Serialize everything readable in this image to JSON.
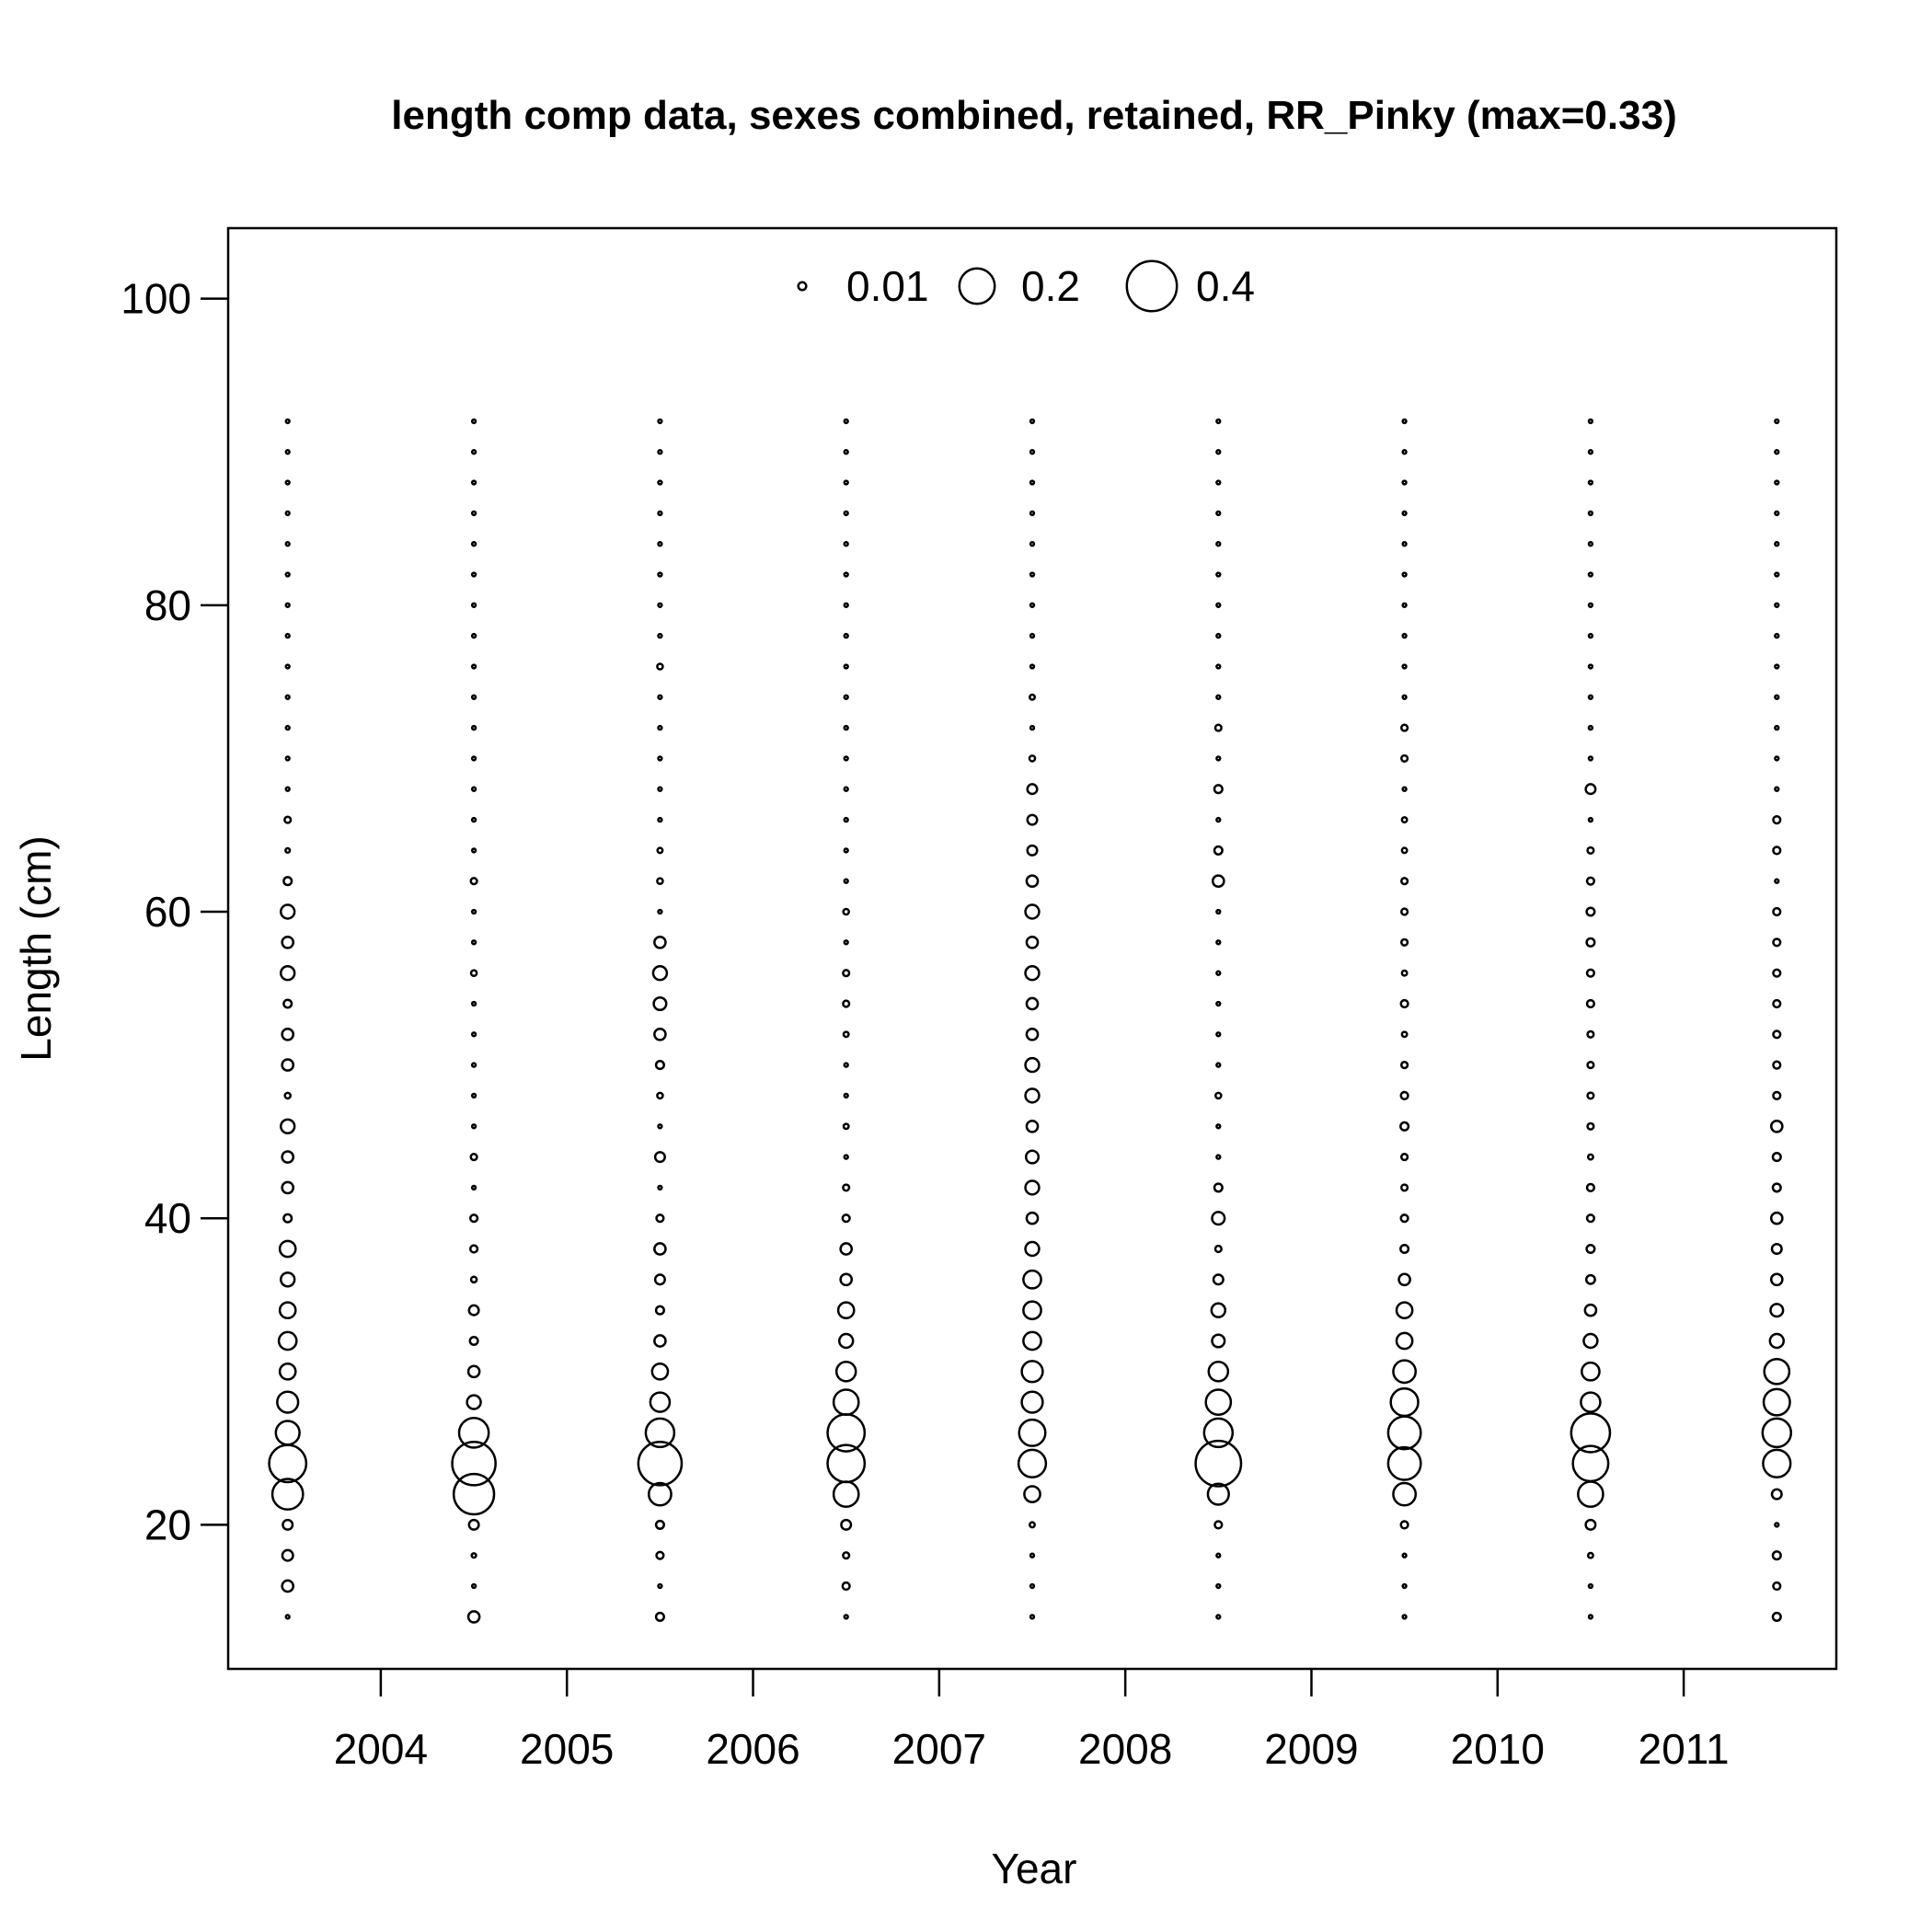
{
  "chart_data": {
    "type": "scatter",
    "subtype": "bubble",
    "title": "length comp data, sexes combined, retained, RR_Pinky (max=0.33)",
    "xlabel": "Year",
    "ylabel": "Length (cm)",
    "xlim": [
      2003.18,
      2011.82
    ],
    "ylim": [
      10.6,
      104.6
    ],
    "x_ticks": [
      2004,
      2005,
      2006,
      2007,
      2008,
      2009,
      2010,
      2011
    ],
    "y_ticks": [
      20,
      40,
      60,
      80,
      100
    ],
    "legend": {
      "placement": "top-center",
      "entries": [
        {
          "label": "0.01",
          "value": 0.01
        },
        {
          "label": "0.2",
          "value": 0.2
        },
        {
          "label": "0.4",
          "value": 0.4
        }
      ]
    },
    "size_scale": "radius proportional to sqrt(proportion)",
    "length_bins": [
      14,
      16,
      18,
      20,
      22,
      24,
      26,
      28,
      30,
      32,
      34,
      36,
      38,
      40,
      42,
      44,
      46,
      48,
      50,
      52,
      54,
      56,
      58,
      60,
      62,
      64,
      66,
      68,
      70,
      72,
      74,
      76,
      78,
      80,
      82,
      84,
      86,
      88,
      90,
      92
    ],
    "series": [
      {
        "x": 2003.5,
        "values": [
          0.002,
          0.02,
          0.018,
          0.015,
          0.15,
          0.22,
          0.09,
          0.07,
          0.04,
          0.05,
          0.04,
          0.03,
          0.04,
          0.01,
          0.02,
          0.02,
          0.03,
          0.005,
          0.02,
          0.02,
          0.01,
          0.03,
          0.02,
          0.03,
          0.01,
          0.003,
          0.006,
          0.002,
          0.002,
          0.002,
          0.002,
          0.002,
          0.002,
          0.002,
          0.002,
          0.002,
          0.002,
          0.002,
          0.002,
          0.002
        ]
      },
      {
        "x": 2004.5,
        "values": [
          0.02,
          0.002,
          0.003,
          0.015,
          0.26,
          0.3,
          0.14,
          0.03,
          0.02,
          0.01,
          0.015,
          0.005,
          0.008,
          0.008,
          0.002,
          0.006,
          0.002,
          0.002,
          0.002,
          0.002,
          0.002,
          0.005,
          0.002,
          0.002,
          0.006,
          0.002,
          0.002,
          0.002,
          0.002,
          0.002,
          0.002,
          0.002,
          0.002,
          0.002,
          0.002,
          0.002,
          0.002,
          0.002,
          0.002,
          0.002
        ]
      },
      {
        "x": 2005.5,
        "values": [
          0.01,
          0.002,
          0.008,
          0.01,
          0.08,
          0.3,
          0.13,
          0.06,
          0.04,
          0.02,
          0.01,
          0.015,
          0.02,
          0.008,
          0.002,
          0.015,
          0.002,
          0.005,
          0.01,
          0.02,
          0.025,
          0.03,
          0.02,
          0.002,
          0.005,
          0.004,
          0.002,
          0.002,
          0.002,
          0.002,
          0.002,
          0.005,
          0.002,
          0.002,
          0.002,
          0.002,
          0.002,
          0.002,
          0.002,
          0.002
        ]
      },
      {
        "x": 2006.5,
        "values": [
          0.002,
          0.008,
          0.006,
          0.015,
          0.1,
          0.22,
          0.22,
          0.1,
          0.06,
          0.03,
          0.04,
          0.02,
          0.02,
          0.008,
          0.006,
          0.002,
          0.004,
          0.002,
          0.002,
          0.004,
          0.006,
          0.006,
          0.002,
          0.005,
          0.002,
          0.002,
          0.002,
          0.002,
          0.002,
          0.002,
          0.002,
          0.002,
          0.002,
          0.002,
          0.002,
          0.002,
          0.002,
          0.002,
          0.002,
          0.002
        ]
      },
      {
        "x": 2007.5,
        "values": [
          0.002,
          0.002,
          0.002,
          0.004,
          0.04,
          0.12,
          0.11,
          0.07,
          0.07,
          0.05,
          0.05,
          0.05,
          0.03,
          0.02,
          0.03,
          0.025,
          0.02,
          0.03,
          0.03,
          0.02,
          0.02,
          0.03,
          0.02,
          0.03,
          0.02,
          0.015,
          0.015,
          0.015,
          0.005,
          0.002,
          0.004,
          0.002,
          0.002,
          0.002,
          0.002,
          0.002,
          0.002,
          0.002,
          0.002,
          0.002
        ]
      },
      {
        "x": 2008.5,
        "values": [
          0.002,
          0.002,
          0.002,
          0.008,
          0.07,
          0.33,
          0.13,
          0.1,
          0.06,
          0.025,
          0.03,
          0.015,
          0.006,
          0.025,
          0.01,
          0.002,
          0.002,
          0.005,
          0.002,
          0.002,
          0.002,
          0.002,
          0.002,
          0.002,
          0.02,
          0.01,
          0.002,
          0.01,
          0.002,
          0.006,
          0.002,
          0.002,
          0.002,
          0.002,
          0.002,
          0.002,
          0.002,
          0.002,
          0.002,
          0.002
        ]
      },
      {
        "x": 2009.5,
        "values": [
          0.002,
          0.002,
          0.002,
          0.008,
          0.08,
          0.17,
          0.17,
          0.12,
          0.08,
          0.04,
          0.04,
          0.02,
          0.01,
          0.008,
          0.006,
          0.006,
          0.01,
          0.008,
          0.006,
          0.004,
          0.008,
          0.004,
          0.006,
          0.006,
          0.006,
          0.004,
          0.004,
          0.002,
          0.006,
          0.006,
          0.002,
          0.002,
          0.002,
          0.002,
          0.002,
          0.002,
          0.002,
          0.002,
          0.002,
          0.002
        ]
      },
      {
        "x": 2010.5,
        "values": [
          0.002,
          0.002,
          0.004,
          0.015,
          0.1,
          0.2,
          0.24,
          0.06,
          0.05,
          0.03,
          0.02,
          0.012,
          0.01,
          0.008,
          0.008,
          0.004,
          0.006,
          0.006,
          0.006,
          0.006,
          0.008,
          0.008,
          0.01,
          0.01,
          0.008,
          0.006,
          0.002,
          0.015,
          0.002,
          0.002,
          0.002,
          0.002,
          0.002,
          0.002,
          0.002,
          0.002,
          0.002,
          0.002,
          0.002,
          0.002
        ]
      },
      {
        "x": 2011.5,
        "values": [
          0.01,
          0.008,
          0.01,
          0.002,
          0.015,
          0.12,
          0.13,
          0.11,
          0.1,
          0.03,
          0.025,
          0.02,
          0.015,
          0.02,
          0.01,
          0.01,
          0.02,
          0.008,
          0.008,
          0.008,
          0.008,
          0.008,
          0.008,
          0.008,
          0.002,
          0.008,
          0.008,
          0.002,
          0.002,
          0.002,
          0.002,
          0.002,
          0.002,
          0.002,
          0.002,
          0.002,
          0.002,
          0.002,
          0.002,
          0.002
        ]
      }
    ]
  }
}
